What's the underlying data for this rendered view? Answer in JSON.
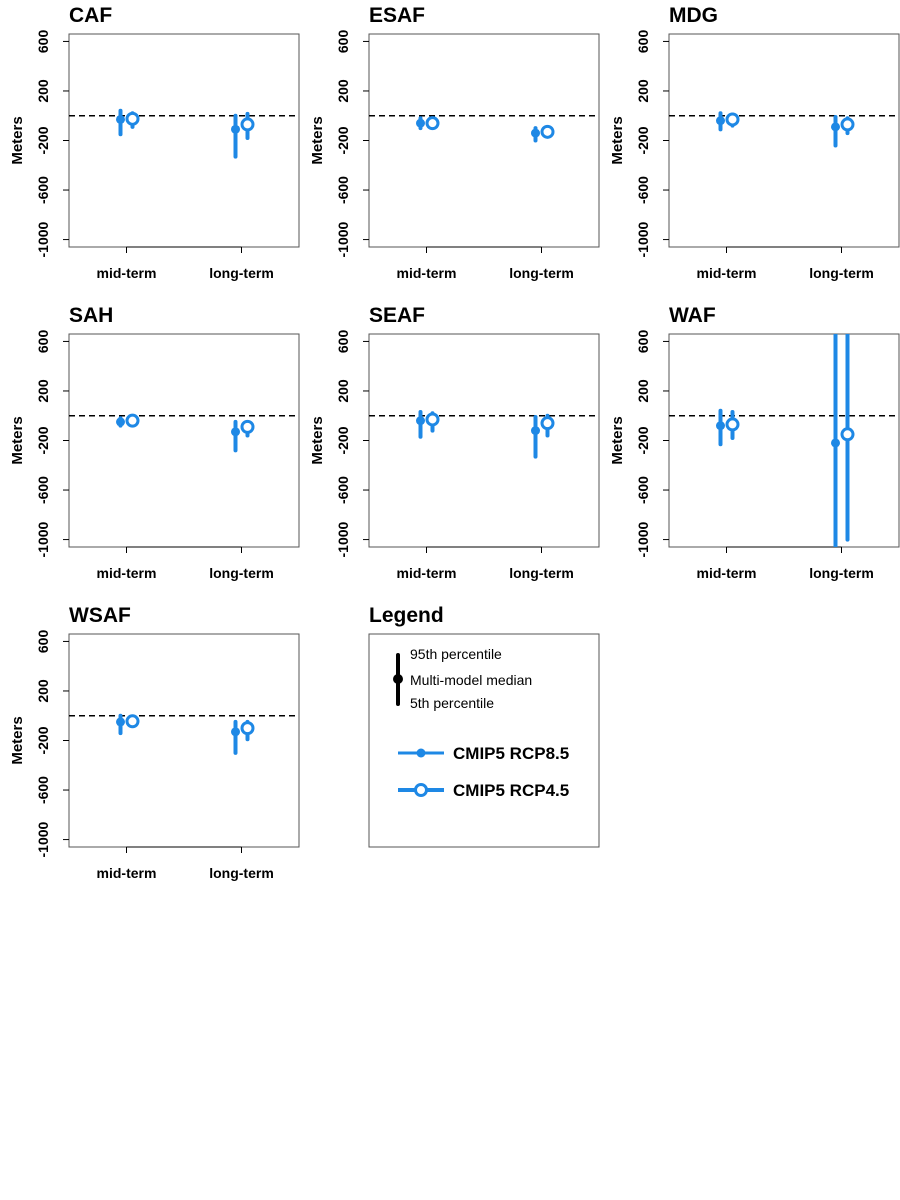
{
  "chart_data": [
    {
      "type": "errorbar",
      "title": "CAF",
      "ylabel": "Meters",
      "ylim": [
        -1060,
        660
      ],
      "yticks": [
        600,
        200,
        -200,
        -600,
        -1000
      ],
      "categories": [
        "mid-term",
        "long-term"
      ],
      "reference_line": 0,
      "series": [
        {
          "name": "CMIP5 RCP8.5",
          "median": [
            -30,
            -110
          ],
          "p5": [
            -150,
            -330
          ],
          "p95": [
            40,
            0
          ]
        },
        {
          "name": "CMIP5 RCP4.5",
          "median": [
            -25,
            -70
          ],
          "p5": [
            -90,
            -180
          ],
          "p95": [
            20,
            15
          ]
        }
      ]
    },
    {
      "type": "errorbar",
      "title": "ESAF",
      "ylabel": "Meters",
      "ylim": [
        -1060,
        660
      ],
      "yticks": [
        600,
        200,
        -200,
        -600,
        -1000
      ],
      "categories": [
        "mid-term",
        "long-term"
      ],
      "reference_line": 0,
      "series": [
        {
          "name": "CMIP5 RCP8.5",
          "median": [
            -60,
            -140
          ],
          "p5": [
            -100,
            -200
          ],
          "p95": [
            -20,
            -100
          ]
        },
        {
          "name": "CMIP5 RCP4.5",
          "median": [
            -60,
            -130
          ],
          "p5": [
            -80,
            -160
          ],
          "p95": [
            -40,
            -110
          ]
        }
      ]
    },
    {
      "type": "errorbar",
      "title": "MDG",
      "ylabel": "Meters",
      "ylim": [
        -1060,
        660
      ],
      "yticks": [
        600,
        200,
        -200,
        -600,
        -1000
      ],
      "categories": [
        "mid-term",
        "long-term"
      ],
      "reference_line": 0,
      "series": [
        {
          "name": "CMIP5 RCP8.5",
          "median": [
            -40,
            -90
          ],
          "p5": [
            -110,
            -240
          ],
          "p95": [
            20,
            -10
          ]
        },
        {
          "name": "CMIP5 RCP4.5",
          "median": [
            -30,
            -70
          ],
          "p5": [
            -80,
            -140
          ],
          "p95": [
            10,
            -20
          ]
        }
      ]
    },
    {
      "type": "errorbar",
      "title": "SAH",
      "ylabel": "Meters",
      "ylim": [
        -1060,
        660
      ],
      "yticks": [
        600,
        200,
        -200,
        -600,
        -1000
      ],
      "categories": [
        "mid-term",
        "long-term"
      ],
      "reference_line": 0,
      "series": [
        {
          "name": "CMIP5 RCP8.5",
          "median": [
            -50,
            -130
          ],
          "p5": [
            -80,
            -280
          ],
          "p95": [
            -20,
            -50
          ]
        },
        {
          "name": "CMIP5 RCP4.5",
          "median": [
            -40,
            -90
          ],
          "p5": [
            -60,
            -160
          ],
          "p95": [
            -30,
            -60
          ]
        }
      ]
    },
    {
      "type": "errorbar",
      "title": "SEAF",
      "ylabel": "Meters",
      "ylim": [
        -1060,
        660
      ],
      "yticks": [
        600,
        200,
        -200,
        -600,
        -1000
      ],
      "categories": [
        "mid-term",
        "long-term"
      ],
      "reference_line": 0,
      "series": [
        {
          "name": "CMIP5 RCP8.5",
          "median": [
            -40,
            -120
          ],
          "p5": [
            -170,
            -330
          ],
          "p95": [
            30,
            -10
          ]
        },
        {
          "name": "CMIP5 RCP4.5",
          "median": [
            -30,
            -60
          ],
          "p5": [
            -120,
            -160
          ],
          "p95": [
            20,
            0
          ]
        }
      ]
    },
    {
      "type": "errorbar",
      "title": "WAF",
      "ylabel": "Meters",
      "ylim": [
        -1060,
        660
      ],
      "yticks": [
        600,
        200,
        -200,
        -600,
        -1000
      ],
      "categories": [
        "mid-term",
        "long-term"
      ],
      "reference_line": 0,
      "series": [
        {
          "name": "CMIP5 RCP8.5",
          "median": [
            -80,
            -220
          ],
          "p5": [
            -230,
            -1060
          ],
          "p95": [
            40,
            660
          ]
        },
        {
          "name": "CMIP5 RCP4.5",
          "median": [
            -70,
            -150
          ],
          "p5": [
            -180,
            -1000
          ],
          "p95": [
            30,
            660
          ]
        }
      ]
    },
    {
      "type": "errorbar",
      "title": "WSAF",
      "ylabel": "Meters",
      "ylim": [
        -1060,
        660
      ],
      "yticks": [
        600,
        200,
        -200,
        -600,
        -1000
      ],
      "categories": [
        "mid-term",
        "long-term"
      ],
      "reference_line": 0,
      "series": [
        {
          "name": "CMIP5 RCP8.5",
          "median": [
            -50,
            -130
          ],
          "p5": [
            -140,
            -300
          ],
          "p95": [
            0,
            -50
          ]
        },
        {
          "name": "CMIP5 RCP4.5",
          "median": [
            -45,
            -100
          ],
          "p5": [
            -80,
            -190
          ],
          "p95": [
            -25,
            -50
          ]
        }
      ]
    }
  ],
  "legend": {
    "title": "Legend",
    "p95_label": "95th percentile",
    "median_label": "Multi-model median",
    "p5_label": "5th percentile",
    "series_rcp85": "CMIP5 RCP8.5",
    "series_rcp45": "CMIP5 RCP4.5"
  },
  "colors": {
    "series": "#1E88E5",
    "reference": "#000000",
    "legend_bar": "#000000"
  }
}
